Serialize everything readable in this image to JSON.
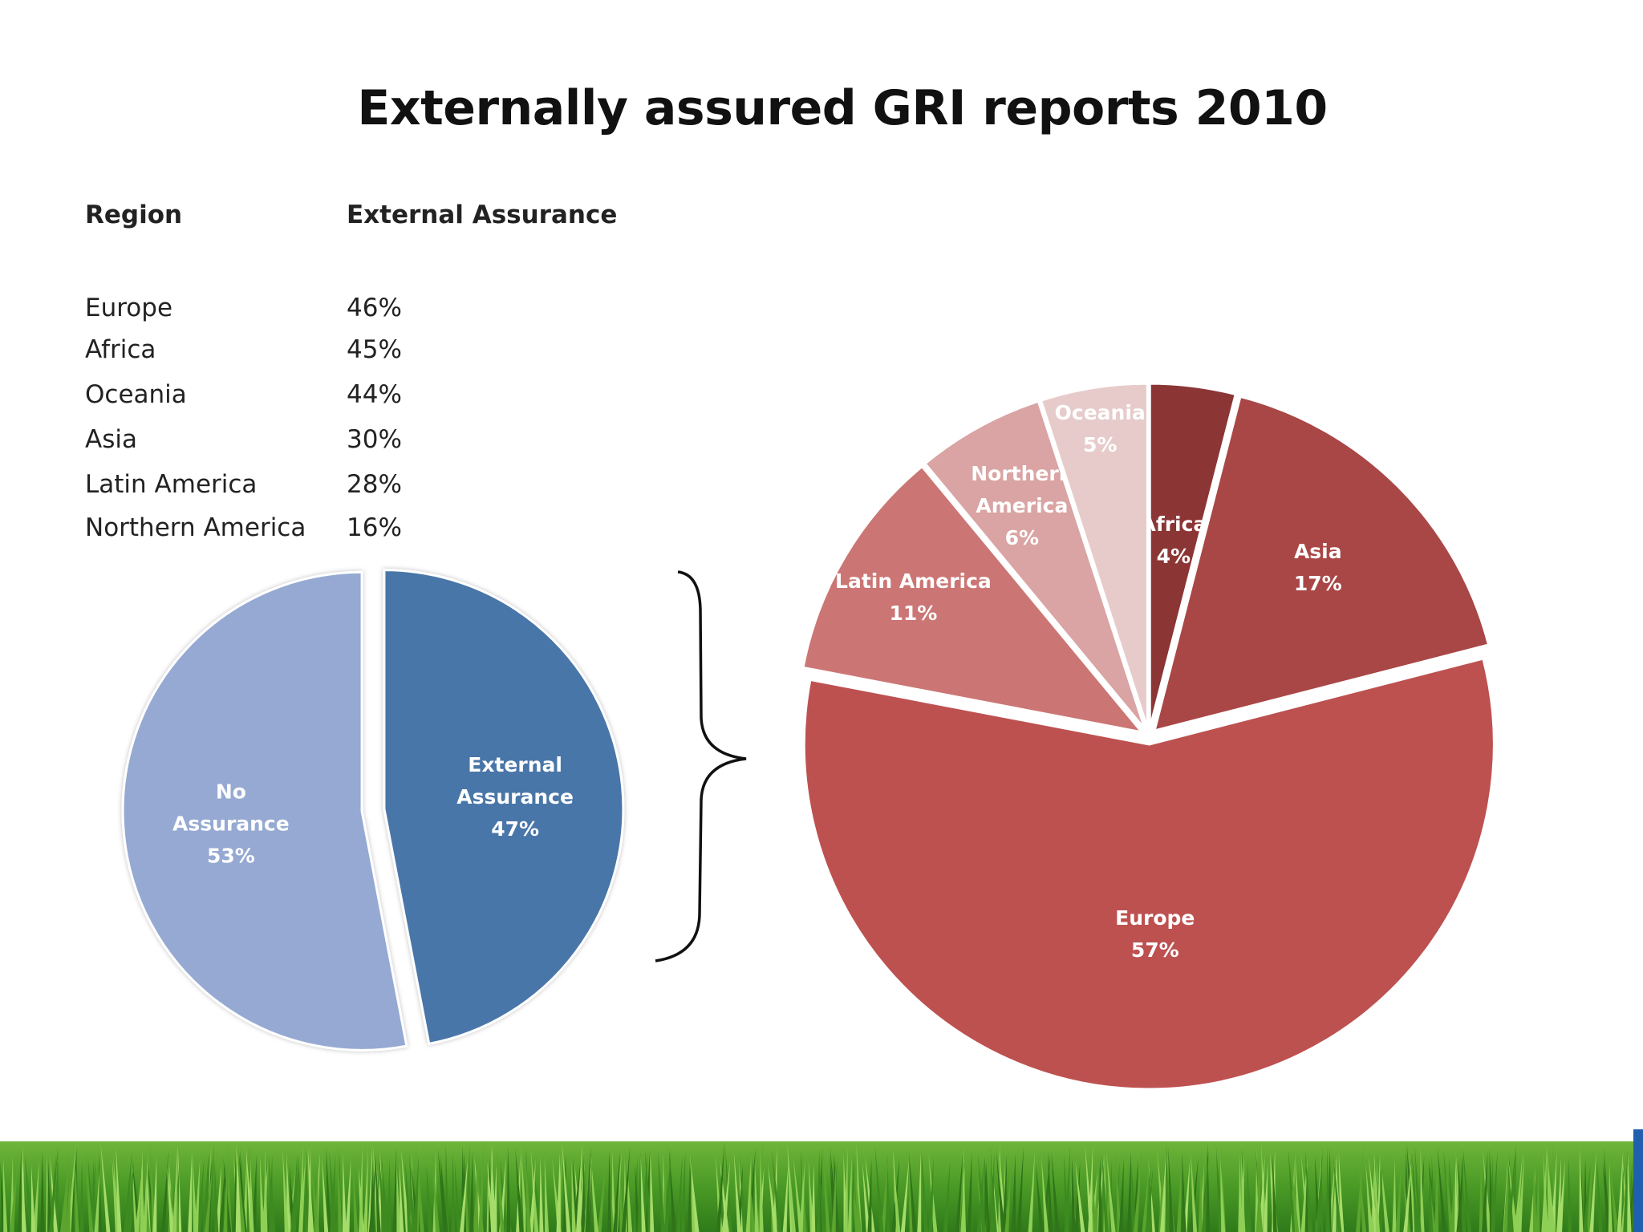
{
  "title": "Externally assured GRI reports 2010",
  "table": {
    "header_region": "Region",
    "header_value": "External Assurance",
    "rows": [
      {
        "region": "Europe",
        "value": "46%"
      },
      {
        "region": "Africa",
        "value": "45%"
      },
      {
        "region": "Oceania",
        "value": "44%"
      },
      {
        "region": "Asia",
        "value": "30%"
      },
      {
        "region": "Latin America",
        "value": "28%"
      },
      {
        "region": "Northern America",
        "value": "16%"
      }
    ]
  },
  "chart_data": [
    {
      "type": "pie",
      "slices": [
        {
          "label": "No Assurance",
          "value": 53,
          "display": "53%",
          "color": "#95a9d2",
          "text_color": "#ffffff"
        },
        {
          "label": "External Assurance",
          "value": 47,
          "display": "47%",
          "color": "#4a76a8",
          "text_color": "#ffffff"
        }
      ]
    },
    {
      "type": "pie",
      "slices": [
        {
          "label": "Africa",
          "value": 4,
          "display": "4%",
          "color": "#8b3535",
          "text_color": "#ffffff"
        },
        {
          "label": "Asia",
          "value": 17,
          "display": "17%",
          "color": "#a94746",
          "text_color": "#ffffff"
        },
        {
          "label": "Europe",
          "value": 57,
          "display": "57%",
          "color": "#bd5150",
          "text_color": "#ffffff"
        },
        {
          "label": "Latin America",
          "value": 11,
          "display": "11%",
          "color": "#cb7674",
          "text_color": "#ffffff"
        },
        {
          "label": "Northern America",
          "value": 6,
          "display": "6%",
          "color": "#d9a4a3",
          "text_color": "#ffffff"
        },
        {
          "label": "Oceania",
          "value": 5,
          "display": "5%",
          "color": "#e7cbcb",
          "text_color": "#ffffff"
        }
      ]
    }
  ]
}
